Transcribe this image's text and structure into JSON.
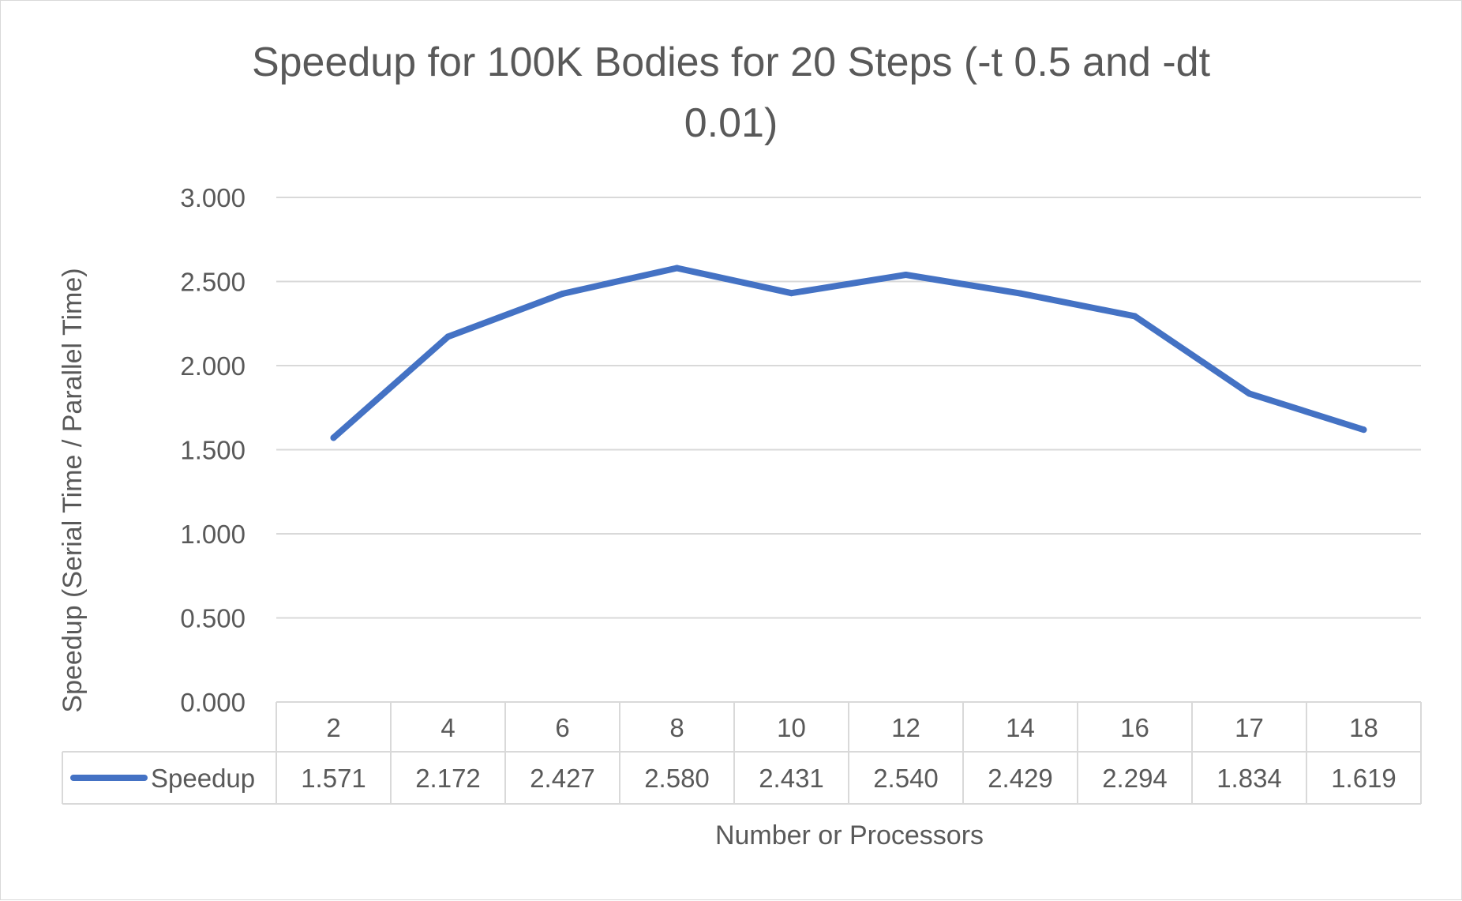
{
  "chart_data": {
    "type": "line",
    "title_line1": "Speedup for 100K Bodies for 20 Steps (-t 0.5 and -dt",
    "title_line2": "0.01)",
    "xlabel": "Number or Processors",
    "ylabel": "Speedup (Serial Time / Parallel Time)",
    "categories": [
      "2",
      "4",
      "6",
      "8",
      "10",
      "12",
      "14",
      "16",
      "17",
      "18"
    ],
    "series": [
      {
        "name": "Speedup",
        "values": [
          1.571,
          2.172,
          2.427,
          2.58,
          2.431,
          2.54,
          2.429,
          2.294,
          1.834,
          1.619
        ],
        "value_labels": [
          "1.571",
          "2.172",
          "2.427",
          "2.580",
          "2.431",
          "2.540",
          "2.429",
          "2.294",
          "1.834",
          "1.619"
        ],
        "color": "#4472c4"
      }
    ],
    "ylim": [
      0,
      3
    ],
    "yticks": [
      "0.000",
      "0.500",
      "1.000",
      "1.500",
      "2.000",
      "2.500",
      "3.000"
    ],
    "grid": true,
    "legend": "data-table",
    "gridline_color": "#d9d9d9"
  }
}
